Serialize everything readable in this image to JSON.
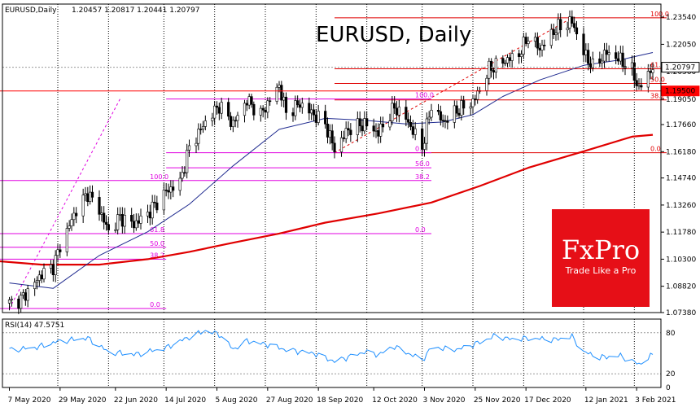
{
  "header": {
    "symbol_info": "EURUSD,Daily",
    "ohlc": "1.20457 1.20817 1.20441 1.20797",
    "big_title": "EURUSD, Daily"
  },
  "logo": {
    "brand": "FxPro",
    "tagline": "Trade Like a Pro",
    "color": "#e60f17"
  },
  "rsi": {
    "label": "RSI(14) 47.5751",
    "levels": [
      80,
      20
    ],
    "tick_labels": [
      "80",
      "20",
      "0"
    ]
  },
  "price_badges": [
    {
      "value": "1.20797",
      "style": "current",
      "bg": "#ffffff",
      "fg": "#000000"
    },
    {
      "value": "1.19500",
      "style": "level",
      "bg": "#ff0000",
      "fg": "#ffffff"
    }
  ],
  "colors": {
    "up_candle": "#000000",
    "down_candle": "#000000",
    "ma50": "#1f2a8f",
    "ma200": "#e00000",
    "fib_a": "#e00000",
    "fib_b": "#e000e0",
    "rsi_line": "#1e8fff"
  },
  "chart_data": {
    "type": "candlestick",
    "title": "EURUSD, Daily",
    "price_axis": {
      "min": 1.0738,
      "max": 1.2425,
      "ticks": [
        "1.23540",
        "1.22050",
        "1.20560",
        "1.19050",
        "1.17660",
        "1.16180",
        "1.14740",
        "1.13260",
        "1.11780",
        "1.10300",
        "1.08820",
        "1.07380"
      ]
    },
    "date_labels": [
      "7 May 2020",
      "29 May 2020",
      "22 Jun 2020",
      "14 Jul 2020",
      "5 Aug 2020",
      "27 Aug 2020",
      "18 Sep 2020",
      "12 Oct 2020",
      "3 Nov 2020",
      "25 Nov 2020",
      "17 Dec 2020",
      "12 Jan 2021",
      "3 Feb 2021"
    ],
    "close_path": [
      [
        "2020-05-07",
        1.079
      ],
      [
        "2020-05-12",
        1.081
      ],
      [
        "2020-05-18",
        1.09
      ],
      [
        "2020-05-21",
        1.095
      ],
      [
        "2020-05-26",
        1.099
      ],
      [
        "2020-05-29",
        1.11
      ],
      [
        "2020-06-05",
        1.13
      ],
      [
        "2020-06-10",
        1.139
      ],
      [
        "2020-06-15",
        1.13
      ],
      [
        "2020-06-19",
        1.118
      ],
      [
        "2020-06-24",
        1.126
      ],
      [
        "2020-06-30",
        1.122
      ],
      [
        "2020-07-06",
        1.128
      ],
      [
        "2020-07-14",
        1.14
      ],
      [
        "2020-07-20",
        1.145
      ],
      [
        "2020-07-24",
        1.164
      ],
      [
        "2020-07-31",
        1.178
      ],
      [
        "2020-08-06",
        1.187
      ],
      [
        "2020-08-12",
        1.177
      ],
      [
        "2020-08-18",
        1.19
      ],
      [
        "2020-08-24",
        1.182
      ],
      [
        "2020-08-28",
        1.19
      ],
      [
        "2020-09-01",
        1.198
      ],
      [
        "2020-09-04",
        1.183
      ],
      [
        "2020-09-10",
        1.188
      ],
      [
        "2020-09-16",
        1.182
      ],
      [
        "2020-09-21",
        1.177
      ],
      [
        "2020-09-25",
        1.163
      ],
      [
        "2020-10-01",
        1.174
      ],
      [
        "2020-10-08",
        1.177
      ],
      [
        "2020-10-14",
        1.172
      ],
      [
        "2020-10-21",
        1.186
      ],
      [
        "2020-10-26",
        1.18
      ],
      [
        "2020-11-02",
        1.164
      ],
      [
        "2020-11-06",
        1.187
      ],
      [
        "2020-11-11",
        1.178
      ],
      [
        "2020-11-18",
        1.185
      ],
      [
        "2020-11-24",
        1.189
      ],
      [
        "2020-11-27",
        1.196
      ],
      [
        "2020-12-01",
        1.207
      ],
      [
        "2020-12-07",
        1.211
      ],
      [
        "2020-12-14",
        1.215
      ],
      [
        "2020-12-18",
        1.225
      ],
      [
        "2020-12-23",
        1.218
      ],
      [
        "2020-12-30",
        1.229
      ],
      [
        "2021-01-06",
        1.233
      ],
      [
        "2021-01-11",
        1.216
      ],
      [
        "2021-01-15",
        1.208
      ],
      [
        "2021-01-21",
        1.216
      ],
      [
        "2021-01-27",
        1.212
      ],
      [
        "2021-02-01",
        1.206
      ],
      [
        "2021-02-04",
        1.196
      ],
      [
        "2021-02-08",
        1.2045
      ],
      [
        "2021-02-10",
        1.208
      ]
    ],
    "ma50": [
      [
        "2020-05-07",
        1.09
      ],
      [
        "2020-05-26",
        1.087
      ],
      [
        "2020-06-15",
        1.105
      ],
      [
        "2020-07-06",
        1.118
      ],
      [
        "2020-07-24",
        1.133
      ],
      [
        "2020-08-12",
        1.154
      ],
      [
        "2020-09-01",
        1.174
      ],
      [
        "2020-09-21",
        1.18
      ],
      [
        "2020-10-08",
        1.179
      ],
      [
        "2020-10-26",
        1.177
      ],
      [
        "2020-11-11",
        1.178
      ],
      [
        "2020-11-24",
        1.182
      ],
      [
        "2020-12-07",
        1.192
      ],
      [
        "2020-12-23",
        1.201
      ],
      [
        "2021-01-11",
        1.209
      ],
      [
        "2021-01-27",
        1.212
      ],
      [
        "2021-02-10",
        1.216
      ]
    ],
    "ma200": [
      [
        "2020-05-01",
        1.102
      ],
      [
        "2020-05-21",
        1.1
      ],
      [
        "2020-06-15",
        1.1
      ],
      [
        "2020-07-06",
        1.103
      ],
      [
        "2020-07-24",
        1.107
      ],
      [
        "2020-08-12",
        1.112
      ],
      [
        "2020-09-01",
        1.117
      ],
      [
        "2020-09-21",
        1.123
      ],
      [
        "2020-10-14",
        1.128
      ],
      [
        "2020-11-06",
        1.134
      ],
      [
        "2020-11-27",
        1.143
      ],
      [
        "2020-12-18",
        1.153
      ],
      [
        "2021-01-11",
        1.162
      ],
      [
        "2021-02-01",
        1.17
      ],
      [
        "2021-02-10",
        1.171
      ]
    ],
    "horizontal_lines": [
      {
        "price": 1.195,
        "color": "red",
        "from": "2020-05-01",
        "to": "2021-02-16"
      }
    ],
    "fib_sets": [
      {
        "name": "fib-top",
        "color": "red",
        "from": "2020-09-25",
        "to": "2021-02-16",
        "levels": [
          {
            "label": "100.0",
            "price": 1.235
          },
          {
            "label": "61.8",
            "price": 1.2071
          },
          {
            "label": "50.0",
            "price": 1.1991
          },
          {
            "label": "38.2",
            "price": 1.1901
          },
          {
            "label": "0.0",
            "price": 1.1612
          }
        ],
        "trend": [
          [
            "2020-09-25",
            1.1612
          ],
          [
            "2021-01-06",
            1.235
          ]
        ]
      },
      {
        "name": "fib-mid",
        "color": "magenta",
        "from": "2020-07-14",
        "to": "2020-11-06",
        "levels": [
          {
            "label": "100.0",
            "price": 1.1906
          },
          {
            "label": "0.0",
            "price": 1.1612
          },
          {
            "label": "50.0",
            "price": 1.153
          },
          {
            "label": "38.2",
            "price": 1.146
          },
          {
            "label": "0.0",
            "price": 1.117
          }
        ]
      },
      {
        "name": "fib-low",
        "color": "magenta",
        "from": "2020-05-01",
        "to": "2020-07-14",
        "levels": [
          {
            "label": "100.0",
            "price": 1.146
          },
          {
            "label": "61.8",
            "price": 1.117
          },
          {
            "label": "50.0",
            "price": 1.1095
          },
          {
            "label": "38.2",
            "price": 1.103
          },
          {
            "label": "0.0",
            "price": 1.076
          }
        ],
        "trend": [
          [
            "2020-05-07",
            1.076
          ],
          [
            "2020-06-24",
            1.1906
          ]
        ]
      }
    ],
    "rsi_values": [
      [
        "2020-05-07",
        55
      ],
      [
        "2020-05-18",
        58
      ],
      [
        "2020-05-29",
        68
      ],
      [
        "2020-06-10",
        72
      ],
      [
        "2020-06-19",
        52
      ],
      [
        "2020-06-30",
        48
      ],
      [
        "2020-07-14",
        58
      ],
      [
        "2020-07-24",
        74
      ],
      [
        "2020-07-31",
        83
      ],
      [
        "2020-08-06",
        78
      ],
      [
        "2020-08-12",
        56
      ],
      [
        "2020-08-18",
        68
      ],
      [
        "2020-08-28",
        62
      ],
      [
        "2020-09-04",
        55
      ],
      [
        "2020-09-16",
        50
      ],
      [
        "2020-09-25",
        38
      ],
      [
        "2020-10-08",
        52
      ],
      [
        "2020-10-14",
        48
      ],
      [
        "2020-10-21",
        60
      ],
      [
        "2020-11-02",
        40
      ],
      [
        "2020-11-06",
        58
      ],
      [
        "2020-11-18",
        56
      ],
      [
        "2020-11-27",
        66
      ],
      [
        "2020-12-04",
        76
      ],
      [
        "2020-12-11",
        70
      ],
      [
        "2020-12-18",
        72
      ],
      [
        "2020-12-30",
        70
      ],
      [
        "2021-01-06",
        74
      ],
      [
        "2021-01-11",
        52
      ],
      [
        "2021-01-18",
        44
      ],
      [
        "2021-01-27",
        46
      ],
      [
        "2021-02-04",
        34
      ],
      [
        "2021-02-10",
        47.5751
      ]
    ]
  }
}
